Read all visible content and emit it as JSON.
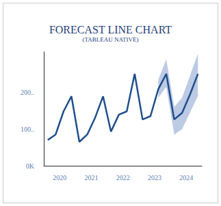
{
  "chart_data": {
    "type": "line",
    "title": "FORECAST LINE CHART",
    "subtitle": "(TABLEAU NATIVE)",
    "categories": [
      null,
      "2020",
      null,
      null,
      null,
      "2021",
      null,
      null,
      null,
      "2022",
      null,
      null,
      null,
      "2023",
      null,
      null,
      null,
      "2024",
      null,
      null
    ],
    "values": [
      70,
      85,
      148,
      189,
      65,
      85,
      131,
      189,
      93,
      139,
      148,
      250,
      126,
      135,
      209,
      250,
      126,
      144,
      194,
      250
    ],
    "forecast_lower": [
      null,
      null,
      null,
      null,
      null,
      null,
      null,
      null,
      null,
      null,
      null,
      null,
      null,
      null,
      185,
      215,
      85,
      100,
      145,
      190
    ],
    "forecast_upper": [
      null,
      null,
      null,
      null,
      null,
      null,
      null,
      null,
      null,
      null,
      null,
      null,
      null,
      null,
      235,
      290,
      160,
      185,
      245,
      305
    ],
    "color": "#1f4e8c",
    "ylim": [
      0,
      310
    ],
    "yticks": [
      {
        "value": 0,
        "label": "0K"
      },
      {
        "value": 100,
        "label": "100.."
      },
      {
        "value": 200,
        "label": "200.."
      }
    ],
    "grid": false
  }
}
